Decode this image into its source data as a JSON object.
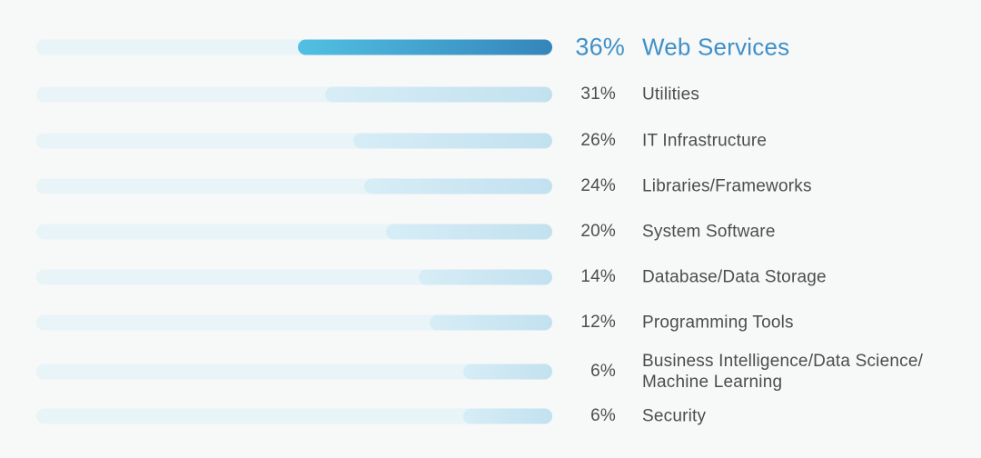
{
  "chart_data": {
    "type": "bar",
    "orientation": "horizontal",
    "title": "",
    "xlabel": "",
    "ylabel": "",
    "axes_visible": false,
    "grid": false,
    "legend": false,
    "value_suffix": "%",
    "categories": [
      "Web Services",
      "Utilities",
      "IT Infrastructure",
      "Libraries/Frameworks",
      "System Software",
      "Database/Data Storage",
      "Programming Tools",
      "Business Intelligence/Data Science/\nMachine Learning",
      "Security"
    ],
    "values": [
      36,
      31,
      26,
      24,
      20,
      14,
      12,
      6,
      6
    ],
    "value_labels": [
      "36%",
      "31%",
      "26%",
      "24%",
      "20%",
      "14%",
      "12%",
      "6%",
      "6%"
    ],
    "highlight_index": 0,
    "colors": {
      "background": "#f7f8f8",
      "track": "#e9f4f8",
      "fill_light_start": "#d7edf6",
      "fill_light_end": "#c2e1ef",
      "fill_highlight_start": "#52c0e2",
      "fill_highlight_end": "#3485bb",
      "text_default": "#4d4d4d",
      "text_highlight": "#3f90c9"
    }
  }
}
